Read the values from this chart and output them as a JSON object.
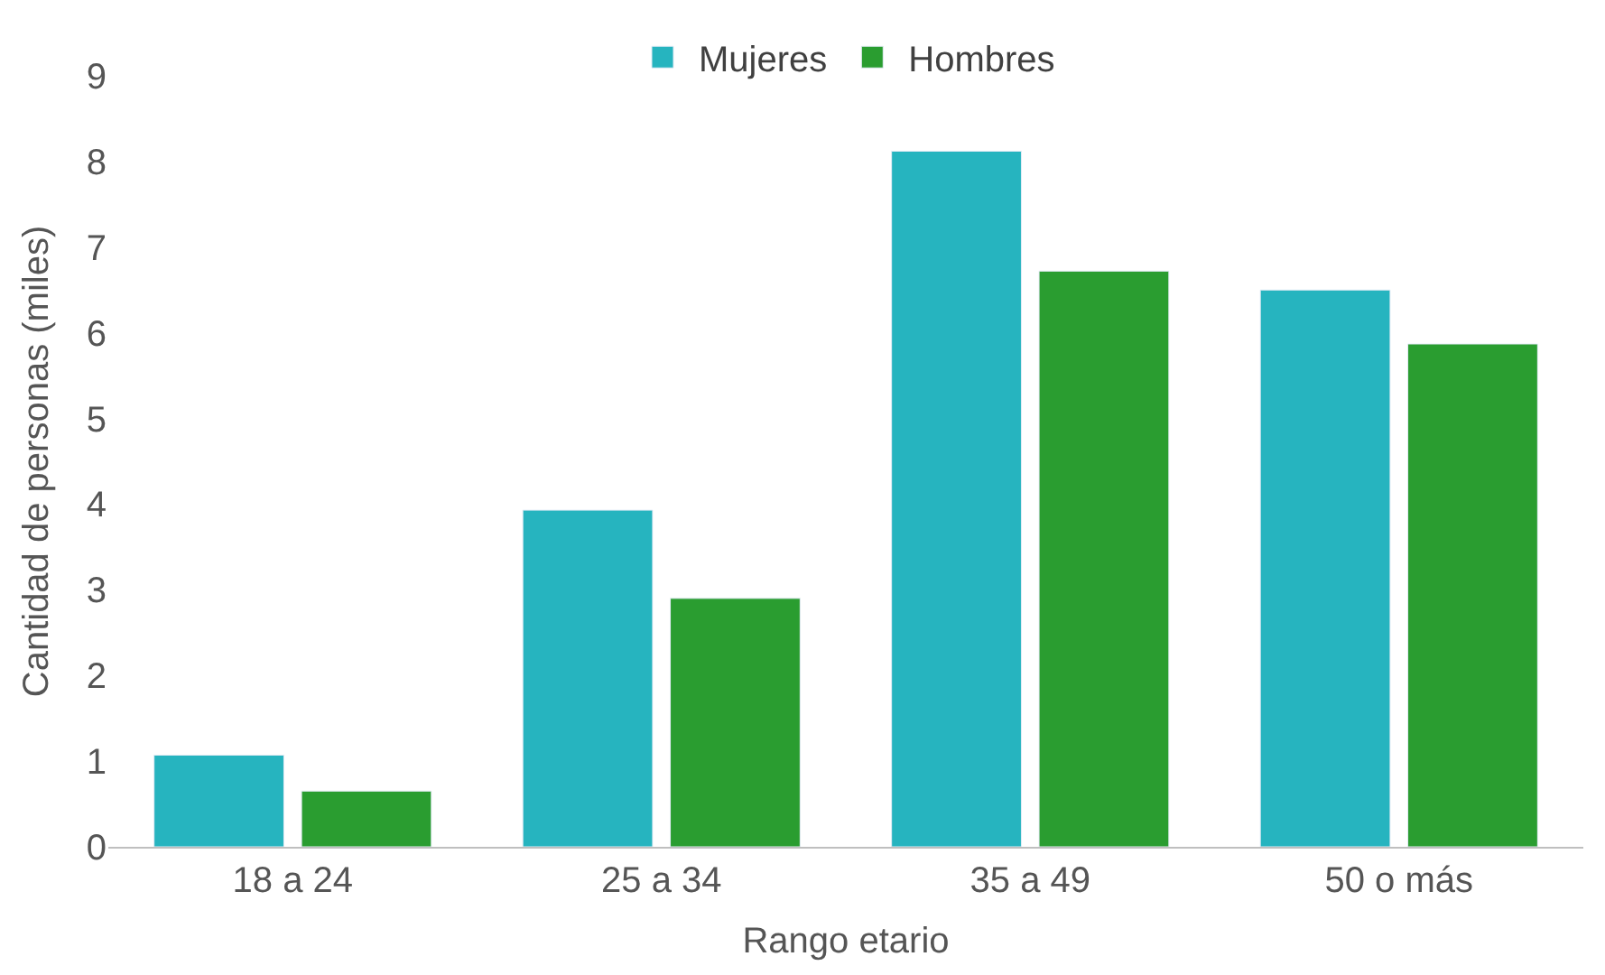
{
  "chart_data": {
    "type": "bar",
    "xlabel": "Rango etario",
    "ylabel": "Cantidad de personas (miles)",
    "categories": [
      "18 a 24",
      "25 a 34",
      "35 a 49",
      "50 o más"
    ],
    "series": [
      {
        "name": "Mujeres",
        "color": "#26b4bf",
        "values": [
          1.07,
          3.93,
          8.12,
          6.5
        ]
      },
      {
        "name": "Hombres",
        "color": "#2a9d30",
        "values": [
          0.65,
          2.9,
          6.72,
          5.87
        ]
      }
    ],
    "ylim": [
      0,
      9
    ],
    "yticks": [
      0,
      1,
      2,
      3,
      4,
      5,
      6,
      7,
      8,
      9
    ],
    "grid": false,
    "legend": "top"
  }
}
